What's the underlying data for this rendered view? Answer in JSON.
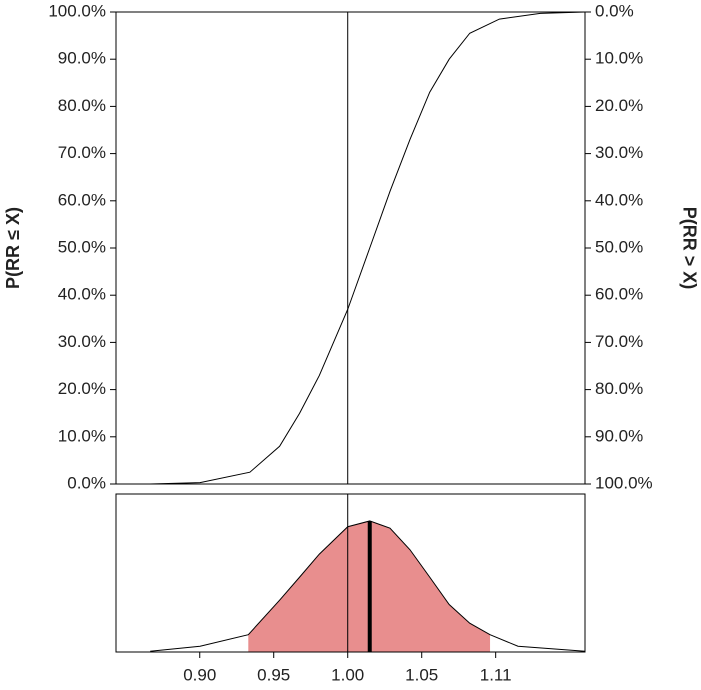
{
  "chart_data": [
    {
      "type": "line",
      "ylabel": "P(RR ≤ X)",
      "y2label": "P(RR > X)",
      "xscale": "log",
      "xlim": [
        0.855,
        1.174
      ],
      "reference_line": 1,
      "x": [
        0.875,
        0.905,
        0.936,
        0.955,
        0.968,
        0.981,
        1.0,
        1.015,
        1.029,
        1.043,
        1.057,
        1.071,
        1.086,
        1.108,
        1.139,
        1.174
      ],
      "series": [
        {
          "color": "#000000",
          "values": [
            0,
            0.3,
            2.5,
            8,
            15,
            23,
            37,
            50,
            62,
            73,
            83,
            90,
            95.5,
            98.5,
            99.7,
            100
          ]
        }
      ],
      "ylim": [
        0,
        100
      ],
      "yticks": [
        {
          "value": 0,
          "label": "0.0%"
        },
        {
          "value": 10,
          "label": "10.0%"
        },
        {
          "value": 20,
          "label": "20.0%"
        },
        {
          "value": 30,
          "label": "30.0%"
        },
        {
          "value": 40,
          "label": "40.0%"
        },
        {
          "value": 50,
          "label": "50.0%"
        },
        {
          "value": 60,
          "label": "60.0%"
        },
        {
          "value": 70,
          "label": "70.0%"
        },
        {
          "value": 80,
          "label": "80.0%"
        },
        {
          "value": 90,
          "label": "90.0%"
        },
        {
          "value": 100,
          "label": "100.0%"
        }
      ],
      "y2lim": [
        100,
        0
      ],
      "y2ticks": [
        {
          "value": 0,
          "label": "0.0%"
        },
        {
          "value": 10,
          "label": "10.0%"
        },
        {
          "value": 20,
          "label": "20.0%"
        },
        {
          "value": 30,
          "label": "30.0%"
        },
        {
          "value": 40,
          "label": "40.0%"
        },
        {
          "value": 50,
          "label": "50.0%"
        },
        {
          "value": 60,
          "label": "60.0%"
        },
        {
          "value": 70,
          "label": "70.0%"
        },
        {
          "value": 80,
          "label": "80.0%"
        },
        {
          "value": 90,
          "label": "90.0%"
        },
        {
          "value": 100,
          "label": "100.0%"
        }
      ]
    },
    {
      "type": "area",
      "xscale": "log",
      "xlim": [
        0.855,
        1.174
      ],
      "x": [
        0.875,
        0.905,
        0.935,
        0.955,
        0.968,
        0.981,
        1.0,
        1.015,
        1.029,
        1.043,
        1.057,
        1.071,
        1.086,
        1.101,
        1.122,
        1.174
      ],
      "values": [
        0.005,
        0.04,
        0.12,
        0.36,
        0.52,
        0.68,
        0.87,
        0.91,
        0.86,
        0.71,
        0.52,
        0.33,
        0.2,
        0.12,
        0.04,
        0.005
      ],
      "ylim": [
        0,
        1
      ],
      "color": "#e88e8e",
      "interval": [
        0.935,
        1.101
      ],
      "estimate": 1.015,
      "reference_line": 1,
      "xticks": [
        {
          "value": 0.9048,
          "label": "0.90"
        },
        {
          "value": 0.9512,
          "label": "0.95"
        },
        {
          "value": 1,
          "label": "1.00"
        },
        {
          "value": 1.0513,
          "label": "1.05"
        },
        {
          "value": 1.1052,
          "label": "1.11"
        }
      ]
    }
  ]
}
